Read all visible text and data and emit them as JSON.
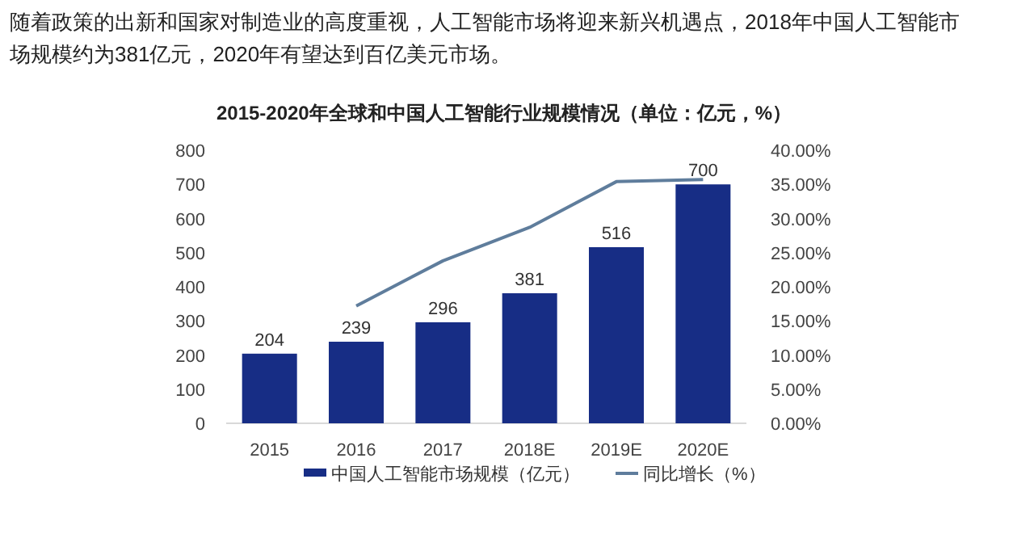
{
  "chart_data": {
    "type": "bar",
    "title": "2015-2020年全球和中国人工智能行业规模情况（单位：亿元，%）",
    "annotations": [
      "随着政策的出新和国家对制造业的高度重视，人工智能市场将迎来新兴机遇点，2018年中国人工智能市场规模约为381亿元，2020年有望达到百亿美元市场。"
    ],
    "categories": [
      "2015",
      "2016",
      "2017",
      "2018E",
      "2019E",
      "2020E"
    ],
    "series": [
      {
        "name": "中国人工智能市场规模（亿元）",
        "color": "#172d85",
        "values": [
          204,
          239,
          296,
          381,
          516,
          700
        ],
        "data_labels": true
      },
      {
        "name": "同比增长（%）",
        "type": "line",
        "axis": "y2",
        "color": "#5f7d9c",
        "values": [
          null,
          17.2,
          23.8,
          28.7,
          35.4,
          35.7
        ]
      }
    ],
    "ylim": [
      0,
      800
    ],
    "yticks": [
      0,
      100,
      200,
      300,
      400,
      500,
      600,
      700,
      800
    ],
    "y2lim": [
      0,
      40
    ],
    "y2ticks": [
      {
        "value": 0,
        "label": "0.00%"
      },
      {
        "value": 5,
        "label": "5.00%"
      },
      {
        "value": 10,
        "label": "10.00%"
      },
      {
        "value": 15,
        "label": "15.00%"
      },
      {
        "value": 20,
        "label": "20.00%"
      },
      {
        "value": 25,
        "label": "25.00%"
      },
      {
        "value": 30,
        "label": "30.00%"
      },
      {
        "value": 35,
        "label": "35.00%"
      },
      {
        "value": 40,
        "label": "40.00%"
      }
    ],
    "grid": false,
    "legend": "bottom",
    "marker": "none"
  }
}
